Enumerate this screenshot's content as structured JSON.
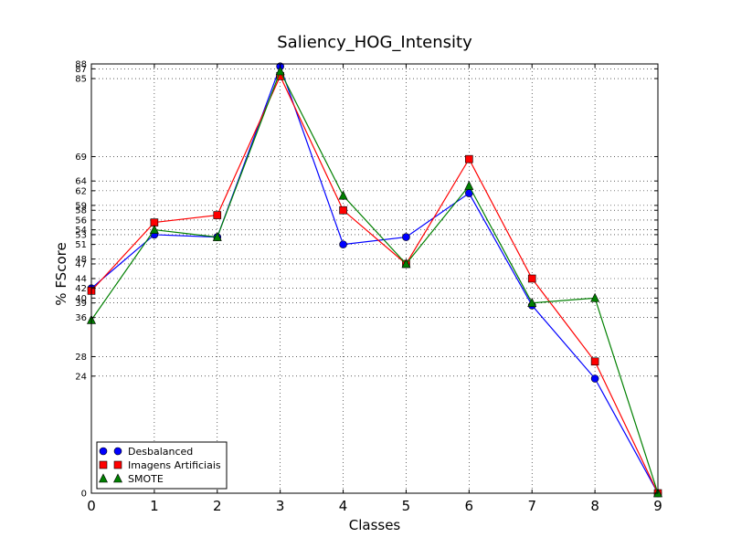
{
  "chart_data": {
    "type": "line",
    "title": "Saliency_HOG_Intensity",
    "xlabel": "Classes",
    "ylabel": "% FScore",
    "xlim": [
      0,
      9
    ],
    "ylim": [
      0,
      88
    ],
    "x_ticks": [
      0,
      1,
      2,
      3,
      4,
      5,
      6,
      7,
      8,
      9
    ],
    "y_ticks": [
      0,
      24,
      28,
      36,
      39,
      40,
      42,
      44,
      47,
      48,
      51,
      53,
      54,
      56,
      58,
      59,
      62,
      64,
      69,
      85,
      87,
      88
    ],
    "grid": true,
    "legend_position": "lower-left",
    "x": [
      0,
      1,
      2,
      3,
      4,
      5,
      6,
      7,
      8,
      9
    ],
    "series": [
      {
        "name": "Desbalanced",
        "color": "#0000ff",
        "marker": "circle",
        "values": [
          42,
          53,
          52.5,
          87.5,
          51,
          52.5,
          61.5,
          38.5,
          23.5,
          0
        ]
      },
      {
        "name": "Imagens Artificiais",
        "color": "#ff0000",
        "marker": "square",
        "values": [
          41.5,
          55.5,
          57,
          85.5,
          58,
          47,
          68.5,
          44,
          27,
          0
        ]
      },
      {
        "name": "SMOTE",
        "color": "#008000",
        "marker": "triangle",
        "values": [
          35.5,
          54,
          52.5,
          86.5,
          61,
          47,
          63,
          39,
          40,
          0
        ]
      }
    ]
  }
}
